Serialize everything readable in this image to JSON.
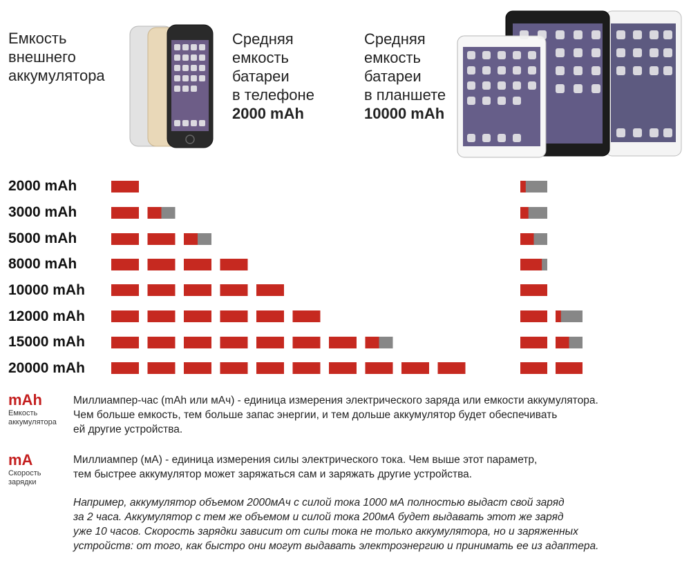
{
  "header": {
    "external_battery": [
      "Емкость",
      "внешнего",
      "аккумулятора"
    ],
    "phone_text": [
      "Средняя",
      "емкость",
      "батареи",
      "в телефоне"
    ],
    "phone_value": "2000 mAh",
    "tablet_text": [
      "Средняя",
      "емкость",
      "батареи",
      "в планшете"
    ],
    "tablet_value": "10000 mAh"
  },
  "colors": {
    "red": "#c62920",
    "gray": "#878787"
  },
  "chart_data": {
    "type": "bar",
    "unit": "mAh",
    "categories": [
      "2000 mAh",
      "3000 mAh",
      "5000 mAh",
      "8000 mAh",
      "10000 mAh",
      "12000 mAh",
      "15000 mAh",
      "20000 mAh"
    ],
    "capacities": [
      2000,
      3000,
      5000,
      8000,
      10000,
      12000,
      15000,
      20000
    ],
    "block_size": 2000,
    "phone_capacity": 2000,
    "tablet_capacity": 10000,
    "series": [
      {
        "values": [
          1,
          1.5,
          2.5,
          4,
          5,
          6,
          7.5,
          10
        ]
      },
      {
        "values": [
          0.2,
          0.3,
          0.5,
          0.8,
          1,
          1.2,
          1.5,
          2
        ]
      }
    ]
  },
  "definitions": [
    {
      "term": "mAh",
      "sub": [
        "Емкость",
        "аккумулятора"
      ],
      "text": [
        "Миллиампер-час (mAh или мАч) - единица измерения электрического заряда или емкости аккумулятора.",
        "Чем больше емкость, тем больше запас энергии, и тем дольше аккумулятор будет обеспечивать",
        "ей другие устройства."
      ]
    },
    {
      "term": "mA",
      "sub": [
        "Скорость",
        "зарядки"
      ],
      "text": [
        "Миллиампер (мА) - единица измерения силы электрического тока. Чем выше этот параметр,",
        "тем быстрее аккумулятор может заряжаться сам и заряжать другие устройства."
      ]
    }
  ],
  "example": [
    "Например, аккумулятор объемом 2000мАч с силой тока 1000 мА полностью выдаст свой заряд",
    "за 2 часа. Аккумулятор с тем же объемом и силой тока 200мА будет выдавать этот же заряд",
    "уже 10 часов. Скорость зарядки зависит от силы тока не только аккумулятора, но и заряженных",
    "устройств: от того, как быстро они могут выдавать электроэнергию и принимать ее из адаптера."
  ]
}
